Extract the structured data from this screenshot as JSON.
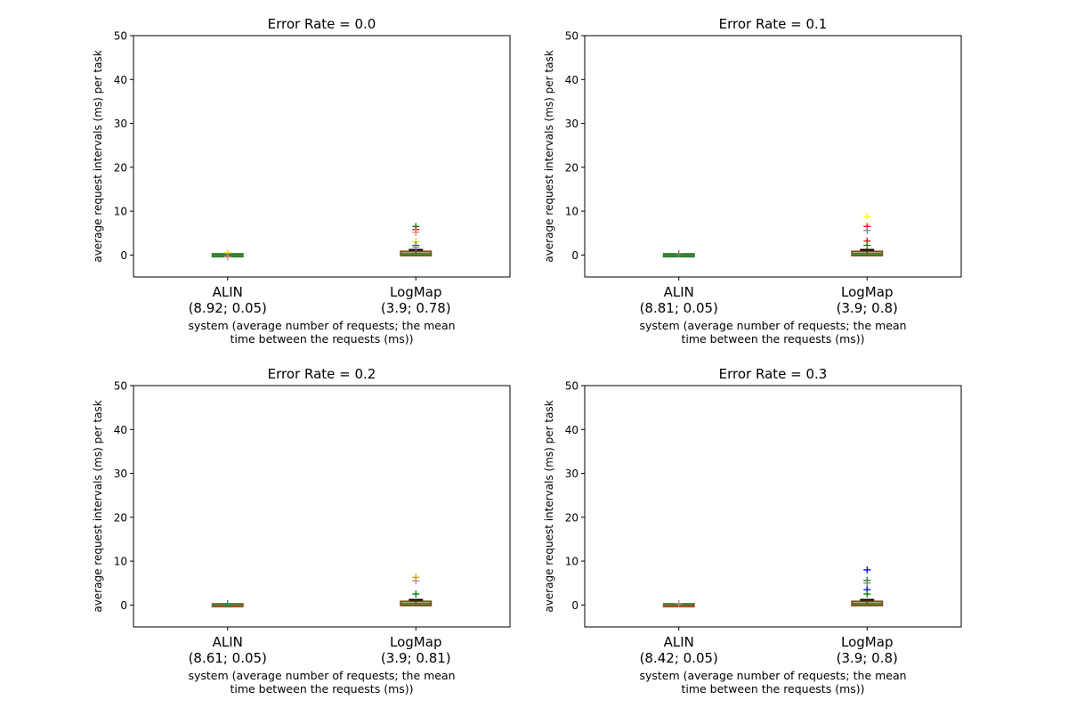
{
  "chart_data": [
    {
      "type": "box",
      "title": "Error Rate = 0.0",
      "ylabel": "average request intervals (ms) per task",
      "xlabel": "system (average number of requests; the mean time between the requests (ms))",
      "xlabel_lines": [
        "system (average number of requests; the mean",
        "time between the requests (ms))"
      ],
      "ylim": [
        -5,
        50
      ],
      "yticks": [
        0,
        10,
        20,
        30,
        40,
        50
      ],
      "categories": [
        {
          "name": "ALIN",
          "sub": "(8.92; 0.05)"
        },
        {
          "name": "LogMap",
          "sub": "(3.9; 0.78)"
        }
      ],
      "boxes": [
        {
          "cat": 0,
          "q1": -0.05,
          "median": 0,
          "q3": 0.05,
          "whislo": -0.1,
          "whishi": 0.1,
          "color": "#2e7d32",
          "outliers": [
            {
              "y": 0.5,
              "color": "#ffd700"
            },
            {
              "y": -0.4,
              "color": "#d08080"
            }
          ]
        },
        {
          "cat": 1,
          "q1": 0.1,
          "median": 0.3,
          "q3": 0.6,
          "whislo": 0,
          "whishi": 1.2,
          "color": "#8b4513",
          "outliers": [
            {
              "y": 6.5,
              "color": "#008000"
            },
            {
              "y": 5.8,
              "color": "#ff0000"
            },
            {
              "y": 5.2,
              "color": "#d08080"
            },
            {
              "y": 3.0,
              "color": "#ffd700"
            },
            {
              "y": 2.2,
              "color": "#008000"
            },
            {
              "y": 1.8,
              "color": "#9370db"
            }
          ]
        }
      ]
    },
    {
      "type": "box",
      "title": "Error Rate = 0.1",
      "ylabel": "average request intervals (ms) per task",
      "xlabel": "system (average number of requests; the mean time between the requests (ms))",
      "xlabel_lines": [
        "system (average number of requests; the mean",
        "time between the requests (ms))"
      ],
      "ylim": [
        -5,
        50
      ],
      "yticks": [
        0,
        10,
        20,
        30,
        40,
        50
      ],
      "categories": [
        {
          "name": "ALIN",
          "sub": "(8.81; 0.05)"
        },
        {
          "name": "LogMap",
          "sub": "(3.9; 0.8)"
        }
      ],
      "boxes": [
        {
          "cat": 0,
          "q1": -0.05,
          "median": 0,
          "q3": 0.05,
          "whislo": -0.1,
          "whishi": 0.1,
          "color": "#2e7d32",
          "outliers": [
            {
              "y": 0.3,
              "color": "#808080"
            }
          ]
        },
        {
          "cat": 1,
          "q1": 0.1,
          "median": 0.3,
          "q3": 0.6,
          "whislo": 0,
          "whishi": 1.2,
          "color": "#8b4513",
          "outliers": [
            {
              "y": 8.8,
              "color": "#ffff00"
            },
            {
              "y": 6.5,
              "color": "#ff0000"
            },
            {
              "y": 5.6,
              "color": "#708090"
            },
            {
              "y": 3.2,
              "color": "#ff0000"
            },
            {
              "y": 2.2,
              "color": "#008000"
            }
          ]
        }
      ]
    },
    {
      "type": "box",
      "title": "Error Rate = 0.2",
      "ylabel": "average request intervals (ms) per task",
      "xlabel": "system (average number of requests; the mean time between the requests (ms))",
      "xlabel_lines": [
        "system (average number of requests; the mean",
        "time between the requests (ms))"
      ],
      "ylim": [
        -5,
        50
      ],
      "yticks": [
        0,
        10,
        20,
        30,
        40,
        50
      ],
      "categories": [
        {
          "name": "ALIN",
          "sub": "(8.61; 0.05)"
        },
        {
          "name": "LogMap",
          "sub": "(3.9; 0.81)"
        }
      ],
      "boxes": [
        {
          "cat": 0,
          "q1": -0.05,
          "median": 0,
          "q3": 0.05,
          "whislo": -0.1,
          "whishi": 0.1,
          "color": "#a0522d",
          "outliers": [
            {
              "y": 0.3,
              "color": "#2e8b57"
            }
          ]
        },
        {
          "cat": 1,
          "q1": 0.1,
          "median": 0.3,
          "q3": 0.6,
          "whislo": 0,
          "whishi": 1.2,
          "color": "#8b4513",
          "outliers": [
            {
              "y": 6.3,
              "color": "#b8b800"
            },
            {
              "y": 5.5,
              "color": "#d08080"
            },
            {
              "y": 2.5,
              "color": "#008000"
            }
          ]
        }
      ]
    },
    {
      "type": "box",
      "title": "Error Rate = 0.3",
      "ylabel": "average request intervals (ms) per task",
      "xlabel": "system (average number of requests; the mean time between the requests (ms))",
      "xlabel_lines": [
        "system (average number of requests; the mean",
        "time between the requests (ms))"
      ],
      "ylim": [
        -5,
        50
      ],
      "yticks": [
        0,
        10,
        20,
        30,
        40,
        50
      ],
      "categories": [
        {
          "name": "ALIN",
          "sub": "(8.42; 0.05)"
        },
        {
          "name": "LogMap",
          "sub": "(3.9; 0.8)"
        }
      ],
      "boxes": [
        {
          "cat": 0,
          "q1": -0.05,
          "median": 0,
          "q3": 0.05,
          "whislo": -0.1,
          "whishi": 0.1,
          "color": "#a0522d",
          "outliers": [
            {
              "y": 0.3,
              "color": "#d08080"
            }
          ]
        },
        {
          "cat": 1,
          "q1": 0.1,
          "median": 0.3,
          "q3": 0.6,
          "whislo": 0,
          "whishi": 1.2,
          "color": "#8b4513",
          "outliers": [
            {
              "y": 8.0,
              "color": "#0000ff"
            },
            {
              "y": 5.6,
              "color": "#008000"
            },
            {
              "y": 5.0,
              "color": "#708090"
            },
            {
              "y": 3.5,
              "color": "#0000ff"
            },
            {
              "y": 2.5,
              "color": "#008000"
            }
          ]
        }
      ]
    }
  ]
}
